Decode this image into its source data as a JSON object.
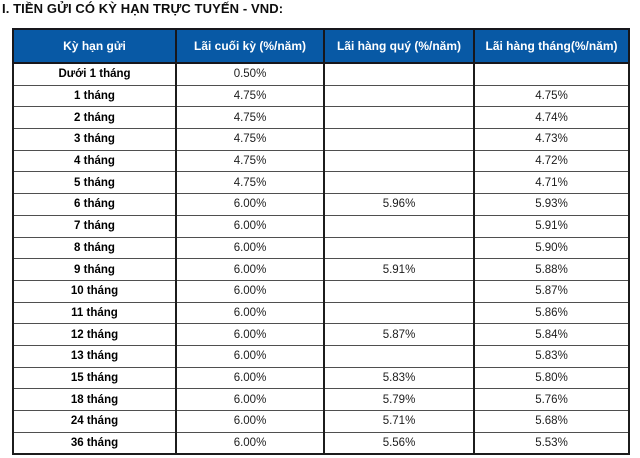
{
  "page": {
    "title": "I. TIỀN GỬI CÓ KỲ HẠN TRỰC TUYẾN - VND:"
  },
  "colors": {
    "header_bg": "#0859a5",
    "header_text": "#ffffff",
    "grid_horizontal": "#4f4f4f",
    "grid_vertical": "#1c1c1c"
  },
  "table": {
    "columns": [
      "Kỳ hạn gửi",
      "Lãi cuối kỳ (%/năm)",
      "Lãi hàng quý (%/năm)",
      "Lãi hàng tháng(%/năm)"
    ],
    "rows": [
      {
        "term": "Dưới 1 tháng",
        "end_of_term": "0.50%",
        "quarterly": "",
        "monthly": ""
      },
      {
        "term": "1 tháng",
        "end_of_term": "4.75%",
        "quarterly": "",
        "monthly": "4.75%"
      },
      {
        "term": "2 tháng",
        "end_of_term": "4.75%",
        "quarterly": "",
        "monthly": "4.74%"
      },
      {
        "term": "3 tháng",
        "end_of_term": "4.75%",
        "quarterly": "",
        "monthly": "4.73%"
      },
      {
        "term": "4 tháng",
        "end_of_term": "4.75%",
        "quarterly": "",
        "monthly": "4.72%"
      },
      {
        "term": "5 tháng",
        "end_of_term": "4.75%",
        "quarterly": "",
        "monthly": "4.71%"
      },
      {
        "term": "6 tháng",
        "end_of_term": "6.00%",
        "quarterly": "5.96%",
        "monthly": "5.93%"
      },
      {
        "term": "7 tháng",
        "end_of_term": "6.00%",
        "quarterly": "",
        "monthly": "5.91%"
      },
      {
        "term": "8 tháng",
        "end_of_term": "6.00%",
        "quarterly": "",
        "monthly": "5.90%"
      },
      {
        "term": "9 tháng",
        "end_of_term": "6.00%",
        "quarterly": "5.91%",
        "monthly": "5.88%"
      },
      {
        "term": "10 tháng",
        "end_of_term": "6.00%",
        "quarterly": "",
        "monthly": "5.87%"
      },
      {
        "term": "11 tháng",
        "end_of_term": "6.00%",
        "quarterly": "",
        "monthly": "5.86%"
      },
      {
        "term": "12 tháng",
        "end_of_term": "6.00%",
        "quarterly": "5.87%",
        "monthly": "5.84%"
      },
      {
        "term": "13 tháng",
        "end_of_term": "6.00%",
        "quarterly": "",
        "monthly": "5.83%"
      },
      {
        "term": "15 tháng",
        "end_of_term": "6.00%",
        "quarterly": "5.83%",
        "monthly": "5.80%"
      },
      {
        "term": "18 tháng",
        "end_of_term": "6.00%",
        "quarterly": "5.79%",
        "monthly": "5.76%"
      },
      {
        "term": "24 tháng",
        "end_of_term": "6.00%",
        "quarterly": "5.71%",
        "monthly": "5.68%"
      },
      {
        "term": "36 tháng",
        "end_of_term": "6.00%",
        "quarterly": "5.56%",
        "monthly": "5.53%"
      }
    ]
  }
}
